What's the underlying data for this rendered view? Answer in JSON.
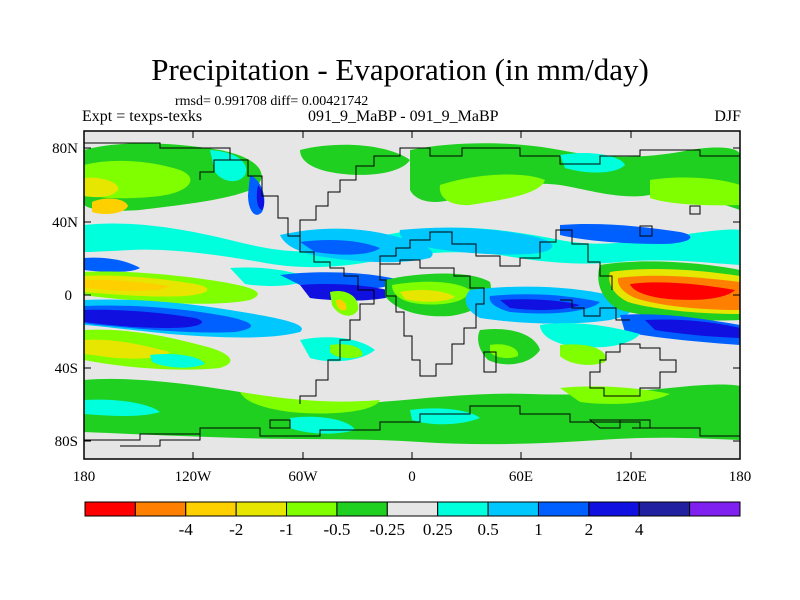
{
  "title": "Precipitation - Evaporation (in mm/day)",
  "stats": "rmsd= 0.991708 diff= 0.00421742",
  "left_label": "Expt = texps-texks",
  "center_label": "091_9_MaBP - 091_9_MaBP",
  "right_label": "DJF",
  "lat_labels": [
    "80N",
    "40N",
    "0",
    "40S",
    "80S"
  ],
  "lon_labels": [
    "180",
    "120W",
    "60W",
    "0",
    "60E",
    "120E",
    "180"
  ],
  "colorbar": {
    "colors": [
      "#ff0000",
      "#ff8000",
      "#ffd000",
      "#e6e600",
      "#80ff00",
      "#20d020",
      "#e6e6e6",
      "#00ffdd",
      "#00c8ff",
      "#0060ff",
      "#1010e0",
      "#2020a0",
      "#8020f0"
    ],
    "labels": [
      "-4",
      "-2",
      "-1",
      "-0.5",
      "-0.25",
      "0.25",
      "0.5",
      "1",
      "2",
      "4"
    ]
  },
  "colors": {
    "land_outline": "#000000",
    "background": "#e6e6e6"
  }
}
